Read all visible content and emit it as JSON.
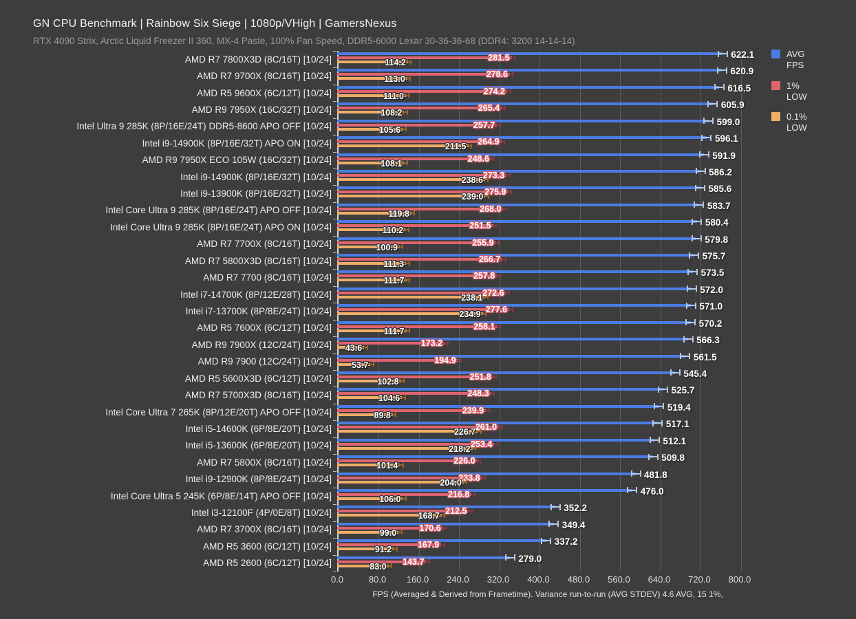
{
  "header": {
    "title": "GN CPU Benchmark | Rainbow Six Siege | 1080p/VHigh | GamersNexus",
    "subtitle": "RTX 4090 Strix, Arctic Liquid Freezer II 360, MX-4 Paste, 100% Fan Speed, DDR5-6000 Lexar 30-36-36-68 (DDR4: 3200 14-14-14)"
  },
  "footer": {
    "note": "FPS (Averaged & Derived from Frametime). Variance run-to-run (AVG STDEV) 4.6 AVG, 15 1%,"
  },
  "colors": {
    "background": "#3d3d3d",
    "grid": "#5c5c5c",
    "axis": "#d9d9d9",
    "avg": "#4a7de4",
    "low1": "#e06370",
    "low01": "#f0ad68",
    "avg_whisker": "#b9c6e0",
    "low1_whisker": "#8f3640",
    "low01_whisker": "#9c6428"
  },
  "chart_data": {
    "type": "bar",
    "orientation": "horizontal",
    "title": "GN CPU Benchmark | Rainbow Six Siege | 1080p/VHigh | GamersNexus",
    "subtitle": "RTX 4090 Strix, Arctic Liquid Freezer II 360, MX-4 Paste, 100% Fan Speed, DDR5-6000 Lexar 30-36-36-68 (DDR4: 3200 14-14-14)",
    "xlabel": "FPS (Averaged & Derived from Frametime). Variance run-to-run (AVG STDEV) 4.6 AVG, 15 1%,",
    "grid": true,
    "legend_position": "top-right",
    "xlim": [
      0,
      837
    ],
    "xticks": [
      0,
      80,
      160,
      240,
      320,
      400,
      480,
      560,
      640,
      720,
      800
    ],
    "xtick_labels": [
      "0.0",
      "80.0",
      "160.0",
      "240.0",
      "320.0",
      "400.0",
      "480.0",
      "560.0",
      "640.0",
      "720.0",
      "800.0"
    ],
    "categories": [
      "AMD R7 7800X3D (8C/16T) [10/24]",
      "AMD R7 9700X (8C/16T) [10/24]",
      "AMD R5 9600X (6C/12T) [10/24]",
      "AMD R9 7950X (16C/32T) [10/24]",
      "Intel Ultra 9 285K (8P/16E/24T) DDR5-8600 APO OFF [10/24]",
      "Intel i9-14900K (8P/16E/32T) APO ON [10/24]",
      "AMD R9 7950X ECO 105W (16C/32T) [10/24]",
      "Intel i9-14900K (8P/16E/32T) [10/24]",
      "Intel i9-13900K (8P/16E/32T) [10/24]",
      "Intel Core Ultra 9 285K (8P/16E/24T) APO OFF [10/24]",
      "Intel Core Ultra 9 285K (8P/16E/24T) APO ON [10/24]",
      "AMD R7 7700X (8C/16T) [10/24]",
      "AMD R7 5800X3D (8C/16T) [10/24]",
      "AMD R7 7700 (8C/16T) [10/24]",
      "Intel i7-14700K (8P/12E/28T) [10/24]",
      "Intel i7-13700K (8P/8E/24T) [10/24]",
      "AMD R5 7600X (6C/12T) [10/24]",
      "AMD R9 7900X (12C/24T) [10/24]",
      "AMD R9 7900 (12C/24T) [10/24]",
      "AMD R5 5600X3D (6C/12T) [10/24]",
      "AMD R7 5700X3D (8C/16T) [10/24]",
      "Intel Core Ultra 7 265K (8P/12E/20T) APO OFF [10/24]",
      "Intel i5-14600K (6P/8E/20T) [10/24]",
      "Intel i5-13600K (6P/8E/20T) [10/24]",
      "AMD R7 5800X (8C/16T) [10/24]",
      "Intel i9-12900K (8P/8E/24T) [10/24]",
      "Intel Core Ultra 5 245K (6P/8E/14T) APO OFF [10/24]",
      "Intel i3-12100F (4P/0E/8T) [10/24]",
      "AMD R7 3700X (8C/16T) [10/24]",
      "AMD R5 3600 (6C/12T) [10/24]",
      "AMD R5 2600 (6C/12T) [10/24]"
    ],
    "series": [
      {
        "name": "AVG FPS",
        "color": "#4a7de4",
        "values": [
          622.1,
          620.9,
          616.5,
          605.9,
          599.0,
          596.1,
          591.9,
          586.2,
          585.6,
          583.7,
          580.4,
          579.8,
          575.7,
          573.5,
          572.0,
          571.0,
          570.2,
          566.3,
          561.5,
          545.4,
          525.7,
          519.4,
          517.1,
          512.1,
          509.8,
          481.8,
          476.0,
          352.2,
          349.4,
          337.2,
          279.0
        ]
      },
      {
        "name": "1% LOW",
        "color": "#e06370",
        "values": [
          281.5,
          278.6,
          274.2,
          265.4,
          257.7,
          264.9,
          248.6,
          273.3,
          275.9,
          268.0,
          251.5,
          255.9,
          266.7,
          257.8,
          272.6,
          277.6,
          258.1,
          173.2,
          194.9,
          251.8,
          248.3,
          239.9,
          261.0,
          253.4,
          226.0,
          233.8,
          216.8,
          212.5,
          170.6,
          167.9,
          143.7
        ]
      },
      {
        "name": "0.1% LOW",
        "color": "#f0ad68",
        "values": [
          114.2,
          113.0,
          111.0,
          108.2,
          105.6,
          211.5,
          108.1,
          238.6,
          239.0,
          119.8,
          110.2,
          100.9,
          111.3,
          111.7,
          238.1,
          234.9,
          111.7,
          43.6,
          53.7,
          102.8,
          104.6,
          89.8,
          226.7,
          218.2,
          101.4,
          204.0,
          106.0,
          168.7,
          99.0,
          91.2,
          83.0
        ]
      }
    ]
  }
}
